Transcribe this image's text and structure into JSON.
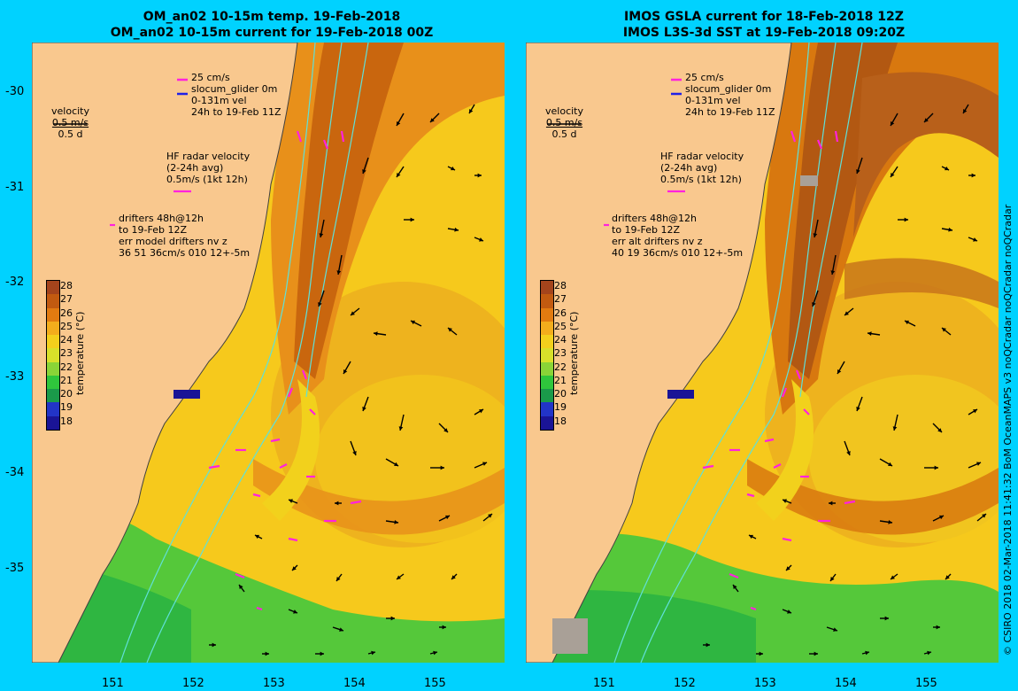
{
  "left_panel": {
    "title_line1": "OM_an02 10-15m temp. 19-Feb-2018",
    "title_line2": "OM_an02 10-15m current for 19-Feb-2018 00Z",
    "velocity": {
      "label": "velocity",
      "scale": "0.5 m/s",
      "duration": "0.5 d"
    },
    "glider": {
      "speed": "25 cm/s",
      "name": "slocum_glider 0m",
      "vel": "0-131m vel",
      "time": "24h to 19-Feb 11Z"
    },
    "hf_radar": {
      "title": "HF radar velocity",
      "avg": "(2-24h avg)",
      "scale": "0.5m/s (1kt 12h)"
    },
    "drifters": {
      "line1": "drifters 48h@12h",
      "line2": "to 19-Feb 12Z",
      "line3": "err model drifters nv z",
      "line4": "36 51 36cm/s 010 12+-5m"
    }
  },
  "right_panel": {
    "title_line1": "IMOS GSLA current for 18-Feb-2018 12Z",
    "title_line2": "IMOS L3S-3d SST at 19-Feb-2018 09:20Z",
    "velocity": {
      "label": "velocity",
      "scale": "0.5 m/s",
      "duration": "0.5 d"
    },
    "glider": {
      "speed": "25 cm/s",
      "name": "slocum_glider 0m",
      "vel": "0-131m vel",
      "time": "24h to 19-Feb 11Z"
    },
    "hf_radar": {
      "title": "HF radar velocity",
      "avg": "(2-24h avg)",
      "scale": "0.5m/s (1kt 12h)"
    },
    "drifters": {
      "line1": "drifters 48h@12h",
      "line2": "to 19-Feb 12Z",
      "line3": "err alt drifters nv z",
      "line4": "40 19 36cm/s 010 12+-5m"
    }
  },
  "colorbar": {
    "title": "temperature (°C)",
    "labels": [
      "28",
      "27",
      "26",
      "25",
      "24",
      "23",
      "22",
      "21",
      "20",
      "19",
      "18"
    ],
    "colors": [
      "#a4441c",
      "#c25a10",
      "#e27b10",
      "#f3ad1c",
      "#f3d01c",
      "#d8e02a",
      "#8ad437",
      "#2fc63c",
      "#1a9a4a",
      "#2234c8",
      "#1a1496"
    ]
  },
  "y_ticks": [
    "-30",
    "-31",
    "-32",
    "-33",
    "-34",
    "-35"
  ],
  "x_ticks": [
    "151",
    "152",
    "153",
    "154",
    "155"
  ],
  "credit": "© CSIRO 2018   02-Mar-2018 11:41:32 BoM OceanMAPS v3 noQCradar noQCradar noQCradar"
}
